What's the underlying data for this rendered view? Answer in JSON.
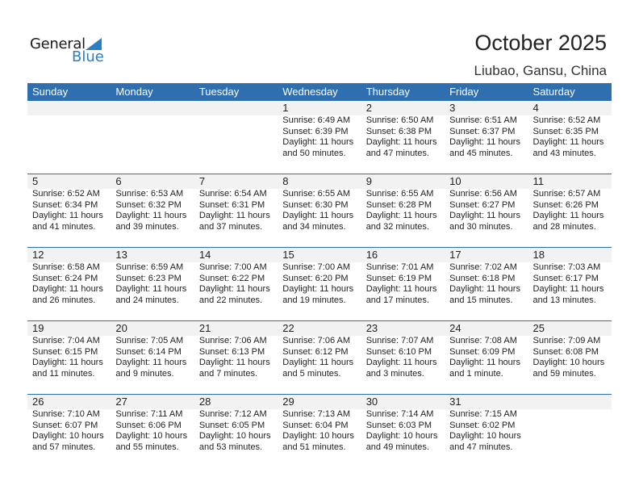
{
  "logo": {
    "general": "General",
    "blue": "Blue"
  },
  "title": "October 2025",
  "location": "Liubao, Gansu, China",
  "weekdays": [
    "Sunday",
    "Monday",
    "Tuesday",
    "Wednesday",
    "Thursday",
    "Friday",
    "Saturday"
  ],
  "weeks": [
    [
      null,
      null,
      null,
      {
        "day": "1",
        "sunrise": "Sunrise: 6:49 AM",
        "sunset": "Sunset: 6:39 PM",
        "daylight1": "Daylight: 11 hours",
        "daylight2": "and 50 minutes."
      },
      {
        "day": "2",
        "sunrise": "Sunrise: 6:50 AM",
        "sunset": "Sunset: 6:38 PM",
        "daylight1": "Daylight: 11 hours",
        "daylight2": "and 47 minutes."
      },
      {
        "day": "3",
        "sunrise": "Sunrise: 6:51 AM",
        "sunset": "Sunset: 6:37 PM",
        "daylight1": "Daylight: 11 hours",
        "daylight2": "and 45 minutes."
      },
      {
        "day": "4",
        "sunrise": "Sunrise: 6:52 AM",
        "sunset": "Sunset: 6:35 PM",
        "daylight1": "Daylight: 11 hours",
        "daylight2": "and 43 minutes."
      }
    ],
    [
      {
        "day": "5",
        "sunrise": "Sunrise: 6:52 AM",
        "sunset": "Sunset: 6:34 PM",
        "daylight1": "Daylight: 11 hours",
        "daylight2": "and 41 minutes."
      },
      {
        "day": "6",
        "sunrise": "Sunrise: 6:53 AM",
        "sunset": "Sunset: 6:32 PM",
        "daylight1": "Daylight: 11 hours",
        "daylight2": "and 39 minutes."
      },
      {
        "day": "7",
        "sunrise": "Sunrise: 6:54 AM",
        "sunset": "Sunset: 6:31 PM",
        "daylight1": "Daylight: 11 hours",
        "daylight2": "and 37 minutes."
      },
      {
        "day": "8",
        "sunrise": "Sunrise: 6:55 AM",
        "sunset": "Sunset: 6:30 PM",
        "daylight1": "Daylight: 11 hours",
        "daylight2": "and 34 minutes."
      },
      {
        "day": "9",
        "sunrise": "Sunrise: 6:55 AM",
        "sunset": "Sunset: 6:28 PM",
        "daylight1": "Daylight: 11 hours",
        "daylight2": "and 32 minutes."
      },
      {
        "day": "10",
        "sunrise": "Sunrise: 6:56 AM",
        "sunset": "Sunset: 6:27 PM",
        "daylight1": "Daylight: 11 hours",
        "daylight2": "and 30 minutes."
      },
      {
        "day": "11",
        "sunrise": "Sunrise: 6:57 AM",
        "sunset": "Sunset: 6:26 PM",
        "daylight1": "Daylight: 11 hours",
        "daylight2": "and 28 minutes."
      }
    ],
    [
      {
        "day": "12",
        "sunrise": "Sunrise: 6:58 AM",
        "sunset": "Sunset: 6:24 PM",
        "daylight1": "Daylight: 11 hours",
        "daylight2": "and 26 minutes."
      },
      {
        "day": "13",
        "sunrise": "Sunrise: 6:59 AM",
        "sunset": "Sunset: 6:23 PM",
        "daylight1": "Daylight: 11 hours",
        "daylight2": "and 24 minutes."
      },
      {
        "day": "14",
        "sunrise": "Sunrise: 7:00 AM",
        "sunset": "Sunset: 6:22 PM",
        "daylight1": "Daylight: 11 hours",
        "daylight2": "and 22 minutes."
      },
      {
        "day": "15",
        "sunrise": "Sunrise: 7:00 AM",
        "sunset": "Sunset: 6:20 PM",
        "daylight1": "Daylight: 11 hours",
        "daylight2": "and 19 minutes."
      },
      {
        "day": "16",
        "sunrise": "Sunrise: 7:01 AM",
        "sunset": "Sunset: 6:19 PM",
        "daylight1": "Daylight: 11 hours",
        "daylight2": "and 17 minutes."
      },
      {
        "day": "17",
        "sunrise": "Sunrise: 7:02 AM",
        "sunset": "Sunset: 6:18 PM",
        "daylight1": "Daylight: 11 hours",
        "daylight2": "and 15 minutes."
      },
      {
        "day": "18",
        "sunrise": "Sunrise: 7:03 AM",
        "sunset": "Sunset: 6:17 PM",
        "daylight1": "Daylight: 11 hours",
        "daylight2": "and 13 minutes."
      }
    ],
    [
      {
        "day": "19",
        "sunrise": "Sunrise: 7:04 AM",
        "sunset": "Sunset: 6:15 PM",
        "daylight1": "Daylight: 11 hours",
        "daylight2": "and 11 minutes."
      },
      {
        "day": "20",
        "sunrise": "Sunrise: 7:05 AM",
        "sunset": "Sunset: 6:14 PM",
        "daylight1": "Daylight: 11 hours",
        "daylight2": "and 9 minutes."
      },
      {
        "day": "21",
        "sunrise": "Sunrise: 7:06 AM",
        "sunset": "Sunset: 6:13 PM",
        "daylight1": "Daylight: 11 hours",
        "daylight2": "and 7 minutes."
      },
      {
        "day": "22",
        "sunrise": "Sunrise: 7:06 AM",
        "sunset": "Sunset: 6:12 PM",
        "daylight1": "Daylight: 11 hours",
        "daylight2": "and 5 minutes."
      },
      {
        "day": "23",
        "sunrise": "Sunrise: 7:07 AM",
        "sunset": "Sunset: 6:10 PM",
        "daylight1": "Daylight: 11 hours",
        "daylight2": "and 3 minutes."
      },
      {
        "day": "24",
        "sunrise": "Sunrise: 7:08 AM",
        "sunset": "Sunset: 6:09 PM",
        "daylight1": "Daylight: 11 hours",
        "daylight2": "and 1 minute."
      },
      {
        "day": "25",
        "sunrise": "Sunrise: 7:09 AM",
        "sunset": "Sunset: 6:08 PM",
        "daylight1": "Daylight: 10 hours",
        "daylight2": "and 59 minutes."
      }
    ],
    [
      {
        "day": "26",
        "sunrise": "Sunrise: 7:10 AM",
        "sunset": "Sunset: 6:07 PM",
        "daylight1": "Daylight: 10 hours",
        "daylight2": "and 57 minutes."
      },
      {
        "day": "27",
        "sunrise": "Sunrise: 7:11 AM",
        "sunset": "Sunset: 6:06 PM",
        "daylight1": "Daylight: 10 hours",
        "daylight2": "and 55 minutes."
      },
      {
        "day": "28",
        "sunrise": "Sunrise: 7:12 AM",
        "sunset": "Sunset: 6:05 PM",
        "daylight1": "Daylight: 10 hours",
        "daylight2": "and 53 minutes."
      },
      {
        "day": "29",
        "sunrise": "Sunrise: 7:13 AM",
        "sunset": "Sunset: 6:04 PM",
        "daylight1": "Daylight: 10 hours",
        "daylight2": "and 51 minutes."
      },
      {
        "day": "30",
        "sunrise": "Sunrise: 7:14 AM",
        "sunset": "Sunset: 6:03 PM",
        "daylight1": "Daylight: 10 hours",
        "daylight2": "and 49 minutes."
      },
      {
        "day": "31",
        "sunrise": "Sunrise: 7:15 AM",
        "sunset": "Sunset: 6:02 PM",
        "daylight1": "Daylight: 10 hours",
        "daylight2": "and 47 minutes."
      },
      null
    ]
  ]
}
